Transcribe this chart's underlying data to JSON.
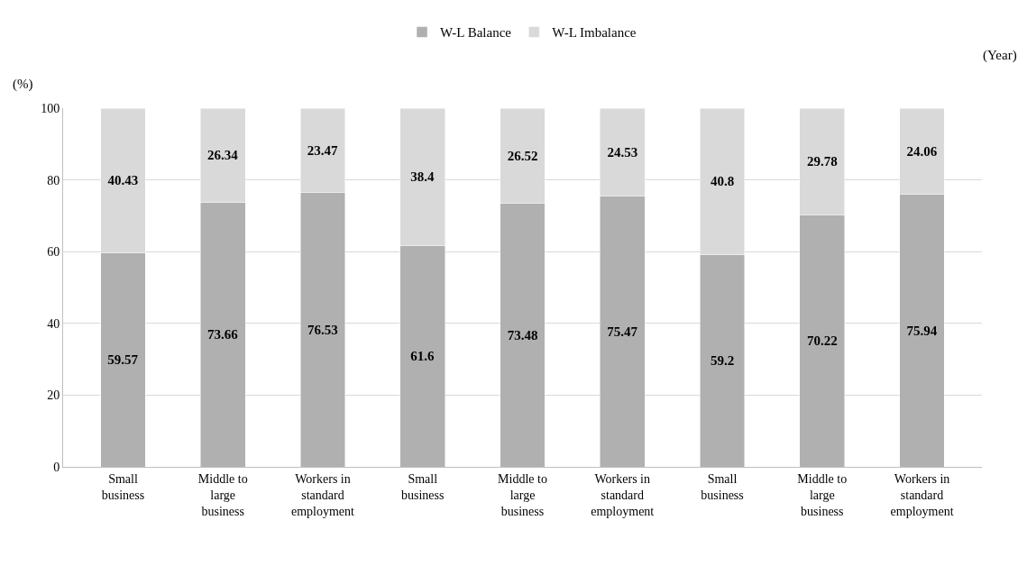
{
  "chart_data": {
    "type": "bar",
    "stacked": true,
    "ylabel": "(%)",
    "annotations": [
      "(Year)"
    ],
    "categories": [
      "Small business",
      "Middle to large business",
      "Workers in standard employment",
      "Small business",
      "Middle to large business",
      "Workers in standard employment",
      "Small business",
      "Middle to large business",
      "Workers in standard employment"
    ],
    "series": [
      {
        "name": "W-L Balance",
        "color": "#b0b0b0",
        "values": [
          59.57,
          73.66,
          76.53,
          61.6,
          73.48,
          75.47,
          59.2,
          70.22,
          75.94
        ]
      },
      {
        "name": "W-L Imbalance",
        "color": "#d9d9d9",
        "values": [
          40.43,
          26.34,
          23.47,
          38.4,
          26.52,
          24.53,
          40.8,
          29.78,
          24.06
        ]
      }
    ],
    "ylim": [
      0,
      100
    ],
    "yticks": [
      0,
      20,
      40,
      60,
      80,
      100
    ],
    "grid": "y",
    "legend": "top",
    "data_labels": true
  }
}
